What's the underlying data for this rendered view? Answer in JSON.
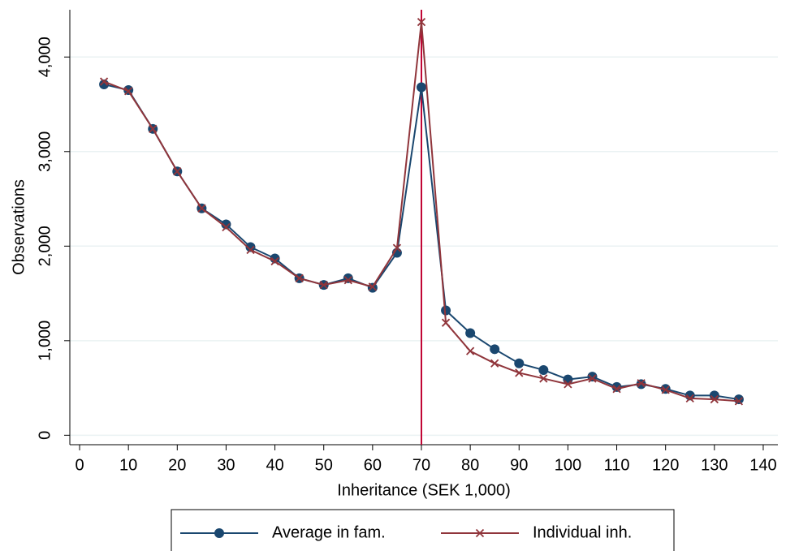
{
  "chart_data": {
    "type": "line",
    "x_label": "Inheritance (SEK 1,000)",
    "y_label": "Observations",
    "x": [
      5,
      10,
      15,
      20,
      25,
      30,
      35,
      40,
      45,
      50,
      55,
      60,
      65,
      70,
      75,
      80,
      85,
      90,
      95,
      100,
      105,
      110,
      115,
      120,
      125,
      130,
      135
    ],
    "series": [
      {
        "name": "Average in fam.",
        "color": "#1a476f",
        "marker": "circle",
        "values": [
          3710,
          3650,
          3240,
          2790,
          2400,
          2230,
          1990,
          1870,
          1660,
          1590,
          1660,
          1560,
          1930,
          3680,
          1320,
          1080,
          910,
          760,
          690,
          590,
          620,
          510,
          540,
          490,
          420,
          420,
          380
        ]
      },
      {
        "name": "Individual inh.",
        "color": "#90353b",
        "marker": "x",
        "values": [
          3740,
          3640,
          3240,
          2790,
          2400,
          2200,
          1960,
          1840,
          1660,
          1590,
          1640,
          1570,
          1980,
          4370,
          1190,
          890,
          760,
          660,
          600,
          540,
          600,
          490,
          550,
          480,
          390,
          380,
          360
        ]
      }
    ],
    "reference_line_x": 70,
    "reference_line_color": "#c10534",
    "xlim": [
      -2,
      143
    ],
    "ylim": [
      -100,
      4500
    ],
    "xticks": [
      0,
      10,
      20,
      30,
      40,
      50,
      60,
      70,
      80,
      90,
      100,
      110,
      120,
      130,
      140
    ],
    "yticks": [
      0,
      {
        "value": 1000,
        "label": "1,000"
      },
      {
        "value": 2000,
        "label": "2,000"
      },
      {
        "value": 3000,
        "label": "3,000"
      },
      {
        "value": 4000,
        "label": "4,000"
      }
    ],
    "grid": true
  }
}
